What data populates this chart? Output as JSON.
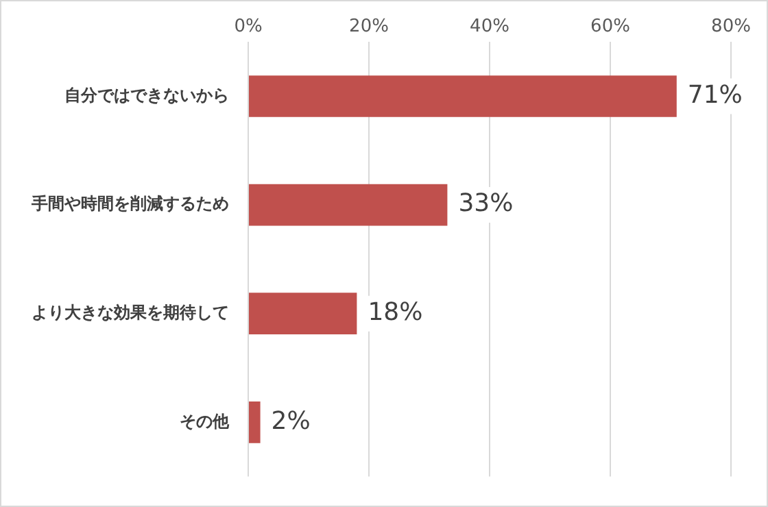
{
  "chart_data": {
    "type": "bar",
    "orientation": "horizontal",
    "categories": [
      "自分ではできないから",
      "手間や時間を削減するため",
      "より大きな効果を期待して",
      "その他"
    ],
    "values": [
      71,
      33,
      18,
      2
    ],
    "color": "#c0504d",
    "xlim": [
      0,
      80
    ],
    "xticks": [
      {
        "value": 0,
        "label": "0%"
      },
      {
        "value": 20,
        "label": "20%"
      },
      {
        "value": 40,
        "label": "40%"
      },
      {
        "value": 60,
        "label": "60%"
      },
      {
        "value": 80,
        "label": "80%"
      }
    ],
    "value_labels": [
      "71%",
      "33%",
      "18%",
      "2%"
    ],
    "grid": "x",
    "legend": false
  }
}
